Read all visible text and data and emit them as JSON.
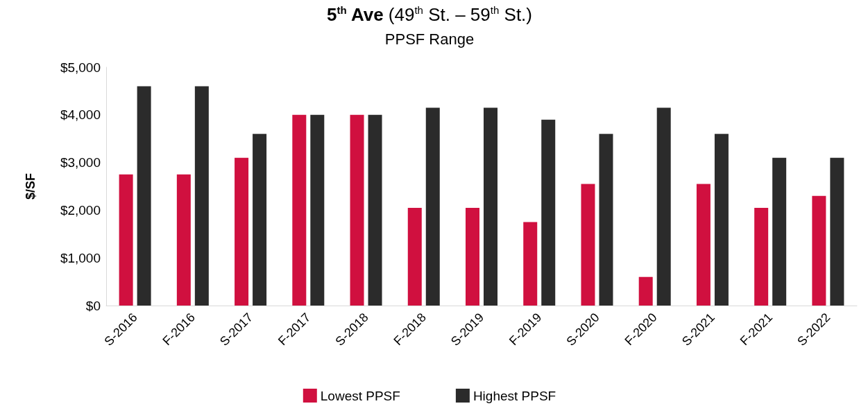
{
  "chart_data": {
    "type": "bar",
    "title": "5$^{th}$ Ave (49$^{th}$ St. – 59$^{th}$ St.)",
    "subtitle": "PPSF Range",
    "ylabel": "$/SF",
    "categories": [
      "S-2016",
      "F-2016",
      "S-2017",
      "F-2017",
      "S-2018",
      "F-2018",
      "S-2019",
      "F-2019",
      "S-2020",
      "F-2020",
      "S-2021",
      "F-2021",
      "S-2022"
    ],
    "series": [
      {
        "name": "Lowest PPSF",
        "color": "#d0103f",
        "values": [
          2750,
          2750,
          3100,
          4000,
          4000,
          2050,
          2050,
          1750,
          2550,
          600,
          2550,
          2050,
          2300
        ]
      },
      {
        "name": "Highest PPSF",
        "color": "#2b2b2b",
        "values": [
          4600,
          4600,
          3600,
          4000,
          4000,
          4150,
          4150,
          3900,
          3600,
          4150,
          3600,
          3100,
          3100
        ]
      }
    ],
    "ylim": [
      0,
      5000
    ],
    "yticks": [
      {
        "value": 0,
        "label": "$0"
      },
      {
        "value": 1000,
        "label": "$1,000"
      },
      {
        "value": 2000,
        "label": "$2,000"
      },
      {
        "value": 3000,
        "label": "$3,000"
      },
      {
        "value": 4000,
        "label": "$4,000"
      },
      {
        "value": 5000,
        "label": "$5,000"
      }
    ],
    "grid": false,
    "legend": "bottom"
  }
}
